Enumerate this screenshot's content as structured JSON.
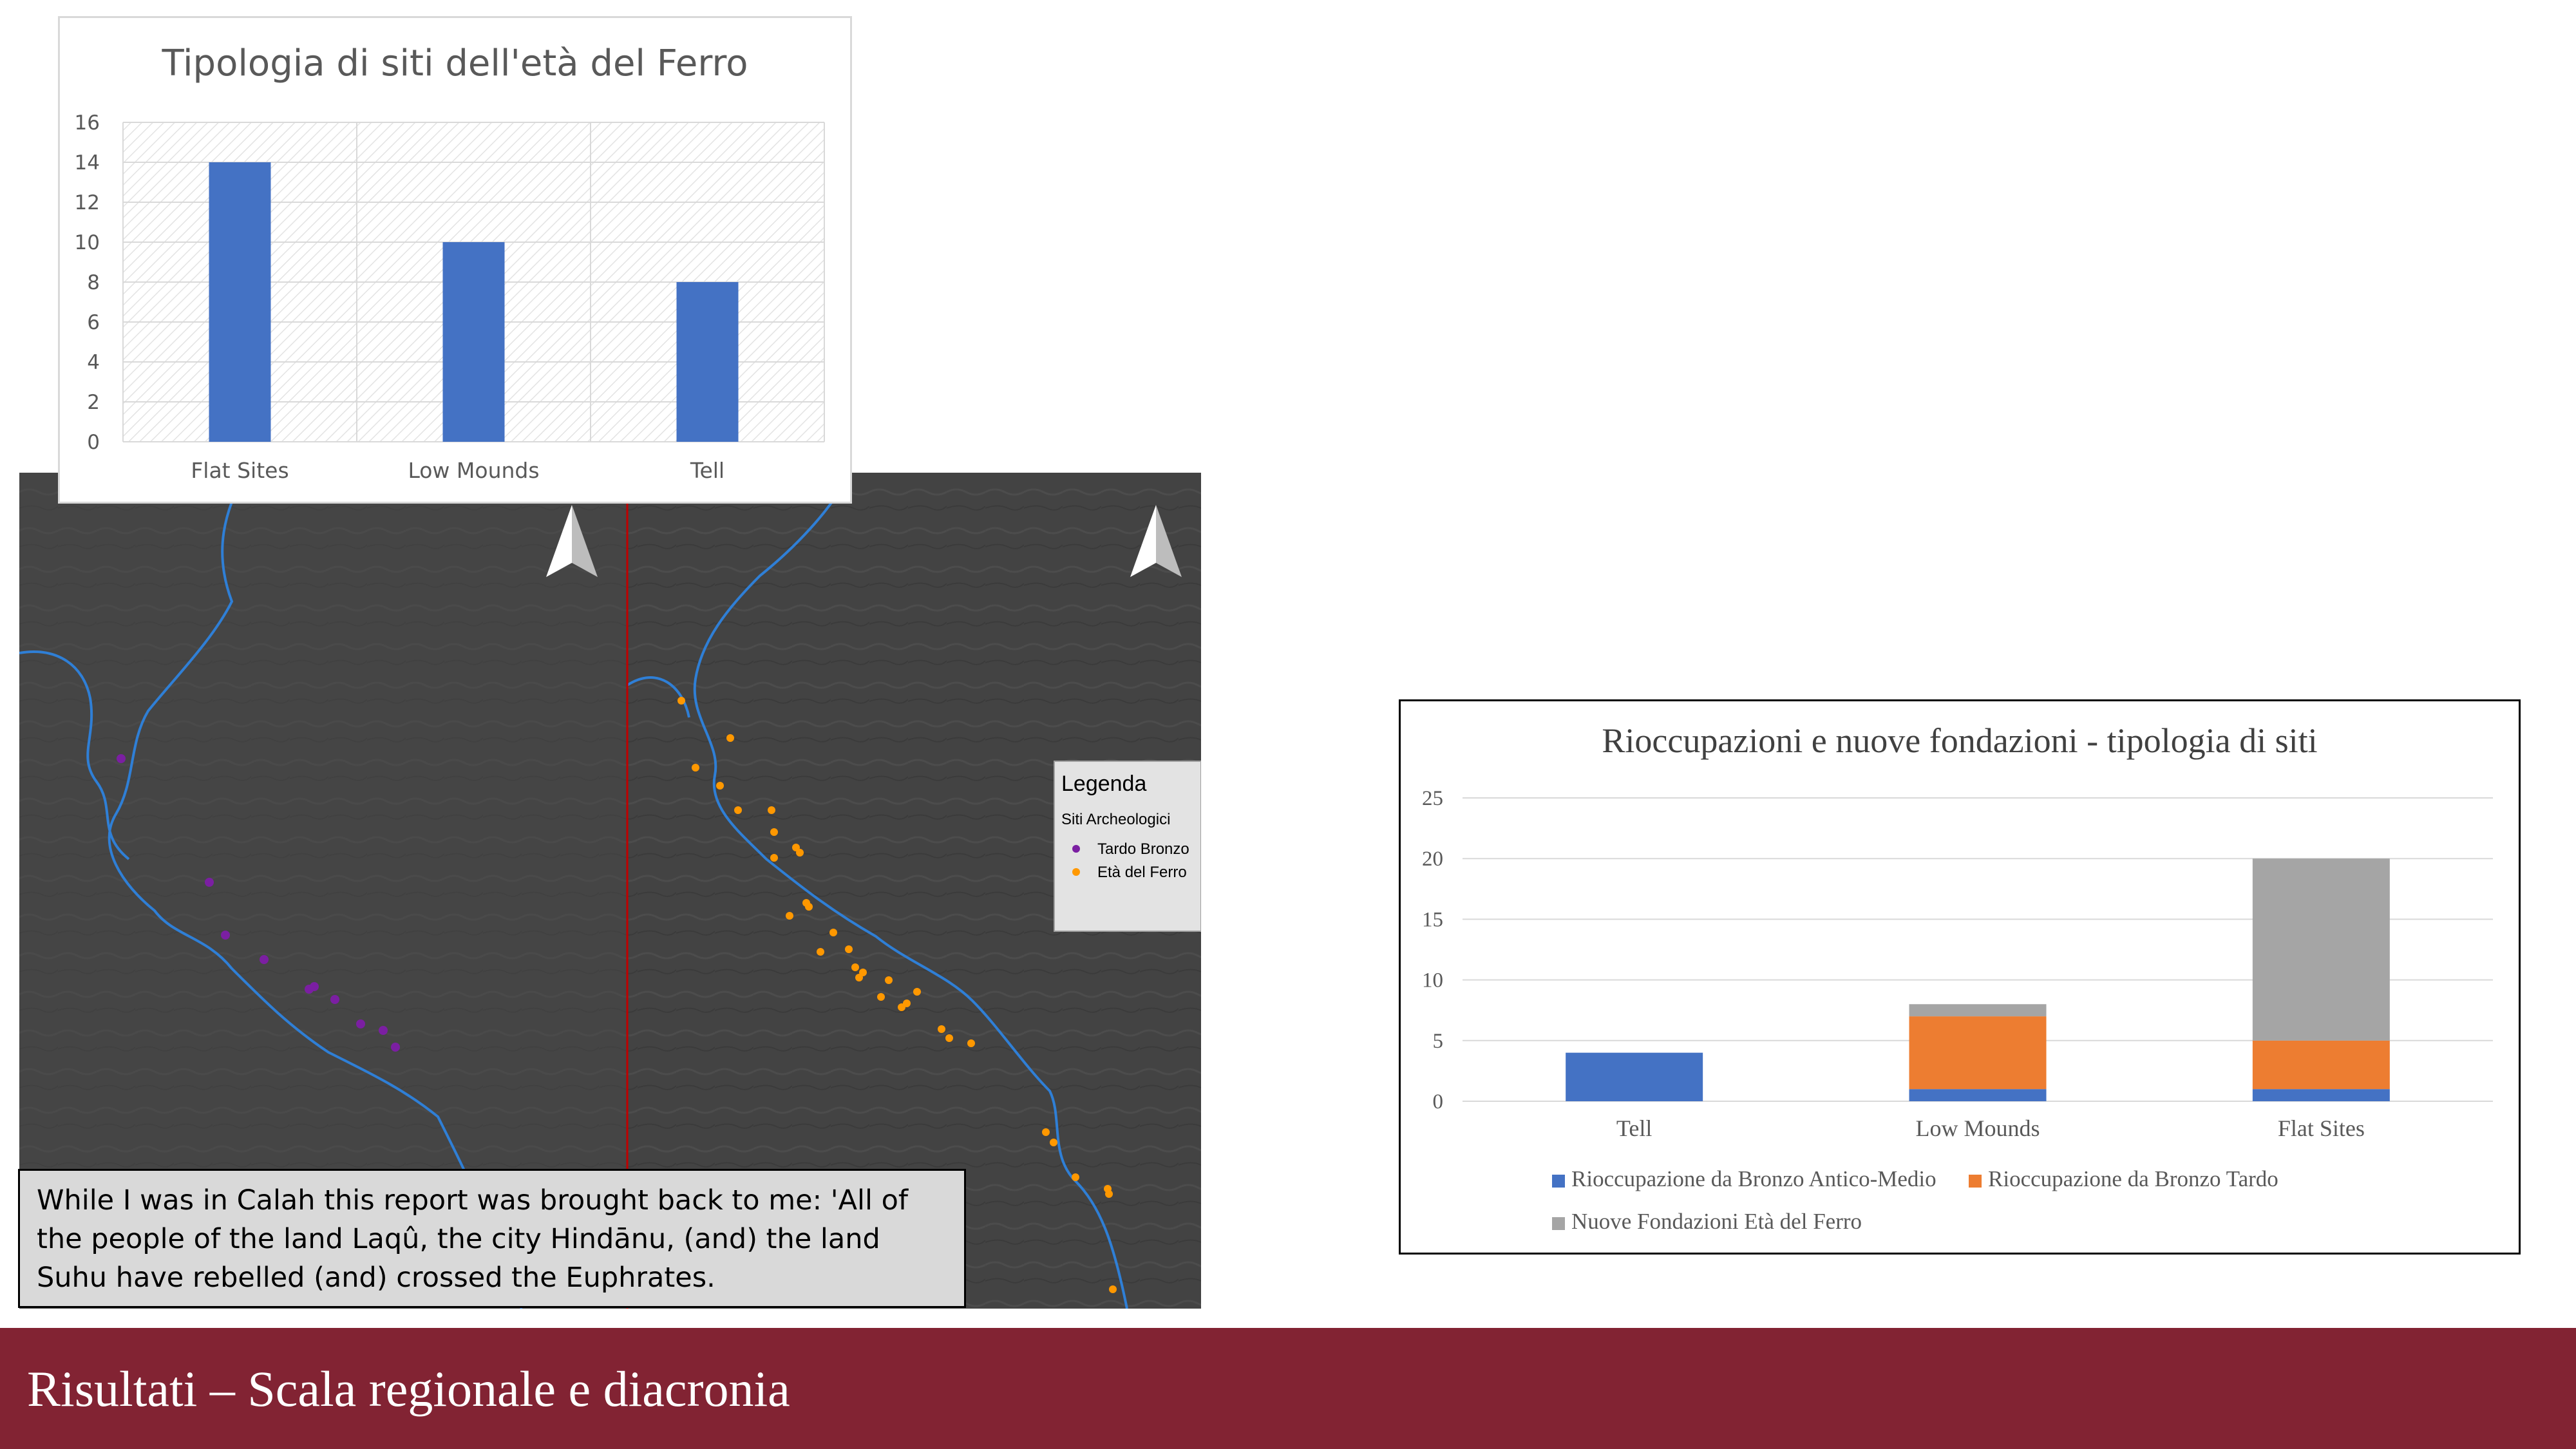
{
  "slide": {
    "title": "Risultati – Scala regionale e diacronia",
    "accent_color": "#822333"
  },
  "quote": {
    "text": "While I was in Calah this report was brought back to me: 'All of the people of the land Laqû, the city Hindānu, (and) the land Suhu have rebelled (and) crossed the Euphrates."
  },
  "map": {
    "legend_title": "Legenda",
    "legend_subtitle": "Siti Archeologici",
    "legend_items": [
      {
        "label": "Tardo Bronzo",
        "color": "#7b1fa2"
      },
      {
        "label": "Età del Ferro",
        "color": "#ff9800"
      }
    ],
    "north_arrow_icon": "north-arrow-icon"
  },
  "chart_data": [
    {
      "type": "bar",
      "title": "Tipologia di siti dell'età del Ferro",
      "categories": [
        "Flat Sites",
        "Low Mounds",
        "Tell"
      ],
      "values": [
        14,
        10,
        8
      ],
      "ylim": [
        0,
        16
      ],
      "yticks": [
        "0",
        "2",
        "4",
        "6",
        "8",
        "10",
        "12",
        "14",
        "16"
      ],
      "color": "#4472c4",
      "grid": true
    },
    {
      "type": "bar",
      "stacked": true,
      "title": "Rioccupazioni e nuove fondazioni - tipologia di siti",
      "categories": [
        "Tell",
        "Low Mounds",
        "Flat Sites"
      ],
      "series": [
        {
          "name": "Rioccupazione da Bronzo Antico-Medio",
          "values": [
            4,
            1,
            1
          ],
          "color": "#4472c4"
        },
        {
          "name": "Rioccupazione da Bronzo Tardo",
          "values": [
            0,
            6,
            4
          ],
          "color": "#ed7d31"
        },
        {
          "name": "Nuove Fondazioni Età del Ferro",
          "values": [
            0,
            1,
            15
          ],
          "color": "#a5a5a5"
        }
      ],
      "ylim": [
        0,
        25
      ],
      "yticks": [
        "0",
        "5",
        "10",
        "15",
        "20",
        "25"
      ],
      "grid": true,
      "legend_position": "bottom"
    }
  ]
}
